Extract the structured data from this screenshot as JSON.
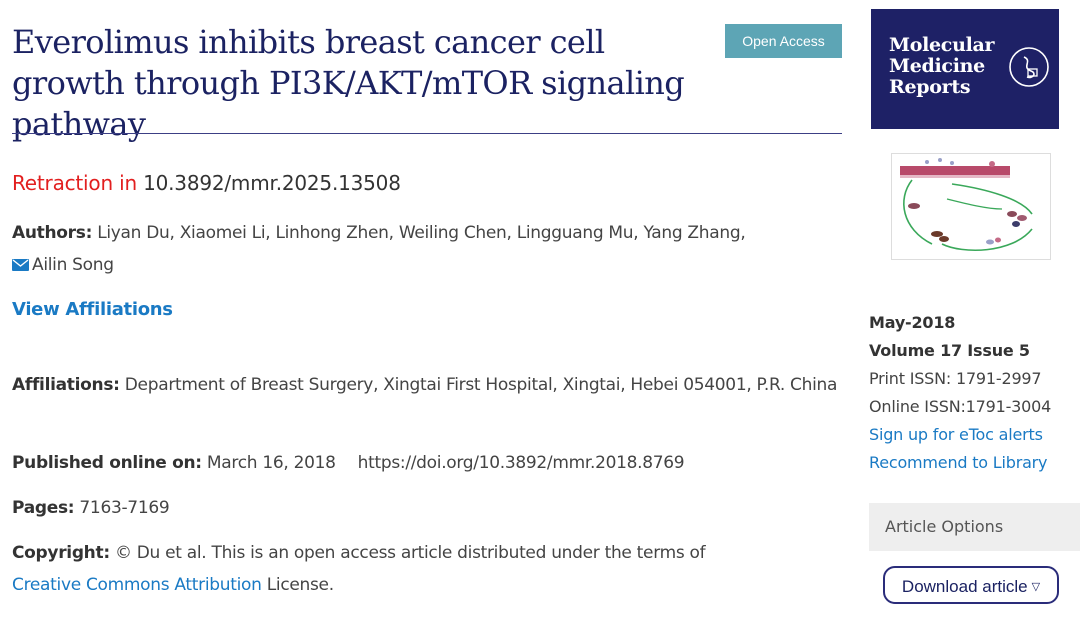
{
  "article": {
    "title": "Everolimus inhibits breast cancer cell growth through PI3K/AKT/mTOR signaling pathway",
    "badge": "Open Access",
    "retraction_label": "Retraction in",
    "retraction_doi": "10.3892/mmr.2025.13508",
    "authors_label": "Authors:",
    "authors": "Liyan Du, Xiaomei Li, Linhong Zhen, Weiling Chen, Lingguang Mu, Yang Zhang,",
    "corresponding_author": "Ailin Song",
    "view_affiliations": "View Affiliations",
    "affiliations_label": "Affiliations:",
    "affiliations": "Department of Breast Surgery, Xingtai First Hospital, Xingtai, Hebei 054001, P.R. China",
    "published_label": "Published online on:",
    "published_date": "March 16, 2018",
    "doi_url": "https://doi.org/10.3892/mmr.2018.8769",
    "pages_label": "Pages:",
    "pages": "7163-7169",
    "copyright_label": "Copyright:",
    "copyright_text": "© Du et al. This is an open access article distributed under the terms of",
    "license_link": "Creative Commons Attribution",
    "license_suffix": "License."
  },
  "sidebar": {
    "journal_title_line1": "Molecular",
    "journal_title_line2": "Medicine",
    "journal_title_line3": "Reports",
    "issue_date": "May-2018",
    "volume_issue": "Volume 17 Issue 5",
    "print_issn": "Print ISSN: 1791-2997",
    "online_issn": "Online ISSN:1791-3004",
    "etoc_link": "Sign up for eToc alerts",
    "recommend_link": "Recommend to Library",
    "options_header": "Article Options",
    "download_button": "Download article"
  },
  "colors": {
    "title": "#1b2262",
    "badge_bg": "#5da5b5",
    "retraction": "#e21f1f",
    "link": "#1a7ac4",
    "cover_bg": "#1e2166"
  },
  "icons": {
    "mail": "envelope-icon",
    "caret": "caret-down-icon",
    "logo": "journal-logo-icon"
  }
}
